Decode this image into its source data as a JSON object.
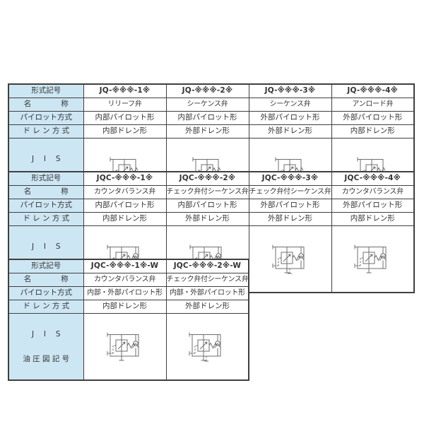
{
  "colors": {
    "page_bg": "#ffffff",
    "header_cell_bg": "#cde6f3",
    "table_border": "#3f3f3f",
    "text": "#333333",
    "symbol_stroke": "#6f6f6f"
  },
  "row_labels": {
    "model_code": "形式記号",
    "name": "名　　　　称",
    "pilot": "パイロット方式",
    "drain": "ド レ ン 方 式",
    "jis_line1": "J　 I　 S",
    "jis_line2": "油 圧 図 記 号"
  },
  "tables": [
    {
      "series": "JQ",
      "columns": [
        {
          "code": "JQ-※※※-1※",
          "valve_name": "リリーフ弁",
          "pilot": "内部パイロット形",
          "drain": "内部ドレン形",
          "symbol": {
            "alt": "relief-valve-symbol",
            "check": false,
            "pilot": "internal",
            "drain": "internal"
          }
        },
        {
          "code": "JQ-※※※-2※",
          "valve_name": "シーケンス弁",
          "pilot": "内部パイロット形",
          "drain": "外部ドレン形",
          "symbol": {
            "alt": "sequence-valve-symbol",
            "check": false,
            "pilot": "internal",
            "drain": "external"
          }
        },
        {
          "code": "JQ-※※※-3※",
          "valve_name": "シーケンス弁",
          "pilot": "外部パイロット形",
          "drain": "外部ドレン形",
          "symbol": {
            "alt": "sequence-valve-symbol",
            "check": false,
            "pilot": "external",
            "drain": "external"
          }
        },
        {
          "code": "JQ-※※※-4※",
          "valve_name": "アンロード弁",
          "pilot": "外部パイロット形",
          "drain": "内部ドレン形",
          "symbol": {
            "alt": "unloader-valve-symbol",
            "check": false,
            "pilot": "external",
            "drain": "internal"
          }
        }
      ]
    },
    {
      "series": "JQC",
      "columns": [
        {
          "code": "JQC-※※※-1※",
          "valve_name": "カウンタバランス弁",
          "pilot": "内部パイロット形",
          "drain": "内部ドレン形",
          "symbol": {
            "alt": "counterbalance-valve-symbol",
            "check": true,
            "pilot": "internal",
            "drain": "internal"
          }
        },
        {
          "code": "JQC-※※※-2※",
          "valve_name": "チェック弁付シーケンス弁",
          "pilot": "内部パイロット形",
          "drain": "外部ドレン形",
          "symbol": {
            "alt": "sequence-valve-with-check-symbol",
            "check": true,
            "pilot": "internal",
            "drain": "external"
          }
        },
        {
          "code": "JQC-※※※-3※",
          "valve_name": "チェック弁付シーケンス弁",
          "pilot": "外部パイロット形",
          "drain": "外部ドレン形",
          "symbol": {
            "alt": "sequence-valve-with-check-symbol",
            "check": true,
            "pilot": "external",
            "drain": "external"
          }
        },
        {
          "code": "JQC-※※※-4※",
          "valve_name": "カウンタバランス弁",
          "pilot": "外部パイロット形",
          "drain": "内部ドレン形",
          "symbol": {
            "alt": "counterbalance-valve-symbol",
            "check": true,
            "pilot": "external",
            "drain": "internal"
          }
        }
      ]
    },
    {
      "series": "JQC-W",
      "columns": [
        {
          "code": "JQC-※※※-1※-W",
          "valve_name": "カウンタバランス弁",
          "pilot": "内部・外部パイロット形",
          "drain": "内部ドレン形",
          "symbol": {
            "alt": "counterbalance-valve-symbol",
            "check": true,
            "pilot": "external",
            "drain": "internal"
          }
        },
        {
          "code": "JQC-※※※-2※-W",
          "valve_name": "チェック弁付シーケンス弁",
          "pilot": "内部・外部パイロット形",
          "drain": "外部ドレン形",
          "symbol": {
            "alt": "sequence-valve-with-check-symbol",
            "check": true,
            "pilot": "external",
            "drain": "external"
          }
        }
      ]
    }
  ]
}
